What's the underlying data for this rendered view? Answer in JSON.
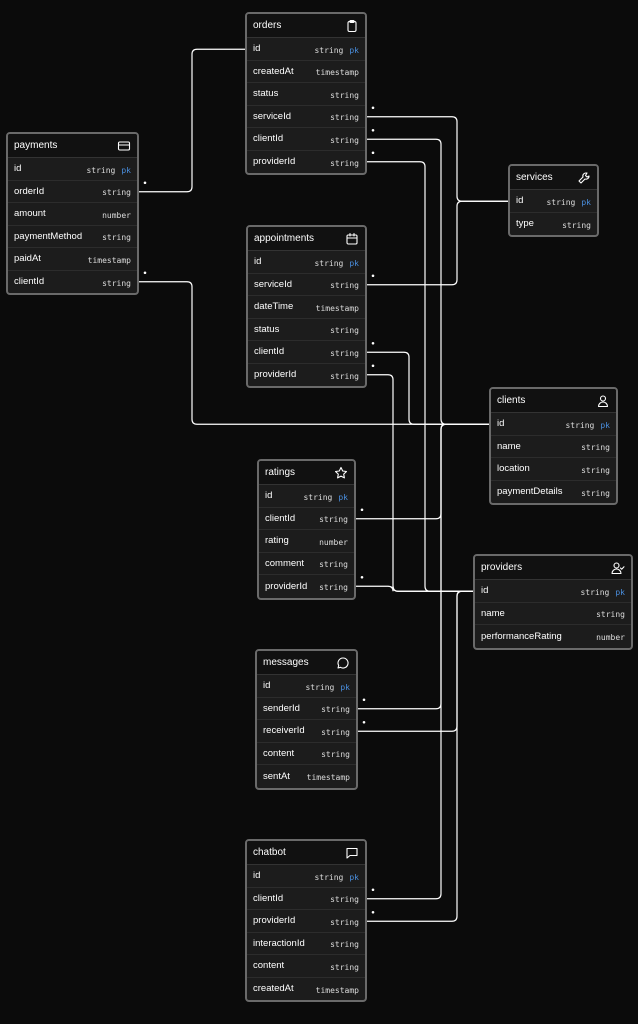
{
  "tables": [
    {
      "id": "orders",
      "name": "orders",
      "icon": "clipboard-icon",
      "fields": [
        {
          "name": "id",
          "type": "string",
          "pk": "pk"
        },
        {
          "name": "createdAt",
          "type": "timestamp"
        },
        {
          "name": "status",
          "type": "string"
        },
        {
          "name": "serviceId",
          "type": "string"
        },
        {
          "name": "clientId",
          "type": "string"
        },
        {
          "name": "providerId",
          "type": "string"
        }
      ]
    },
    {
      "id": "payments",
      "name": "payments",
      "icon": "credit-card-icon",
      "fields": [
        {
          "name": "id",
          "type": "string",
          "pk": "pk"
        },
        {
          "name": "orderId",
          "type": "string"
        },
        {
          "name": "amount",
          "type": "number"
        },
        {
          "name": "paymentMethod",
          "type": "string"
        },
        {
          "name": "paidAt",
          "type": "timestamp"
        },
        {
          "name": "clientId",
          "type": "string"
        }
      ]
    },
    {
      "id": "services",
      "name": "services",
      "icon": "wrench-icon",
      "fields": [
        {
          "name": "id",
          "type": "string",
          "pk": "pk"
        },
        {
          "name": "type",
          "type": "string"
        }
      ]
    },
    {
      "id": "appointments",
      "name": "appointments",
      "icon": "calendar-icon",
      "fields": [
        {
          "name": "id",
          "type": "string",
          "pk": "pk"
        },
        {
          "name": "serviceId",
          "type": "string"
        },
        {
          "name": "dateTime",
          "type": "timestamp"
        },
        {
          "name": "status",
          "type": "string"
        },
        {
          "name": "clientId",
          "type": "string"
        },
        {
          "name": "providerId",
          "type": "string"
        }
      ]
    },
    {
      "id": "clients",
      "name": "clients",
      "icon": "user-icon",
      "fields": [
        {
          "name": "id",
          "type": "string",
          "pk": "pk"
        },
        {
          "name": "name",
          "type": "string"
        },
        {
          "name": "location",
          "type": "string"
        },
        {
          "name": "paymentDetails",
          "type": "string"
        }
      ]
    },
    {
      "id": "ratings",
      "name": "ratings",
      "icon": "star-icon",
      "fields": [
        {
          "name": "id",
          "type": "string",
          "pk": "pk"
        },
        {
          "name": "clientId",
          "type": "string"
        },
        {
          "name": "rating",
          "type": "number"
        },
        {
          "name": "comment",
          "type": "string"
        },
        {
          "name": "providerId",
          "type": "string"
        }
      ]
    },
    {
      "id": "providers",
      "name": "providers",
      "icon": "user-check-icon",
      "fields": [
        {
          "name": "id",
          "type": "string",
          "pk": "pk"
        },
        {
          "name": "name",
          "type": "string"
        },
        {
          "name": "performanceRating",
          "type": "number"
        }
      ]
    },
    {
      "id": "messages",
      "name": "messages",
      "icon": "message-circle-icon",
      "fields": [
        {
          "name": "id",
          "type": "string",
          "pk": "pk"
        },
        {
          "name": "senderId",
          "type": "string"
        },
        {
          "name": "receiverId",
          "type": "string"
        },
        {
          "name": "content",
          "type": "string"
        },
        {
          "name": "sentAt",
          "type": "timestamp"
        }
      ]
    },
    {
      "id": "chatbot",
      "name": "chatbot",
      "icon": "message-square-icon",
      "fields": [
        {
          "name": "id",
          "type": "string",
          "pk": "pk"
        },
        {
          "name": "clientId",
          "type": "string"
        },
        {
          "name": "providerId",
          "type": "string"
        },
        {
          "name": "interactionId",
          "type": "string"
        },
        {
          "name": "content",
          "type": "string"
        },
        {
          "name": "createdAt",
          "type": "timestamp"
        }
      ]
    }
  ],
  "relations": [
    {
      "from": "payments.orderId",
      "to": "orders.id"
    },
    {
      "from": "orders.serviceId",
      "to": "services.id"
    },
    {
      "from": "orders.clientId",
      "to": "clients.id"
    },
    {
      "from": "orders.providerId",
      "to": "providers.id"
    },
    {
      "from": "appointments.serviceId",
      "to": "services.id"
    },
    {
      "from": "appointments.clientId",
      "to": "clients.id"
    },
    {
      "from": "appointments.providerId",
      "to": "providers.id"
    },
    {
      "from": "payments.clientId",
      "to": "clients.id"
    },
    {
      "from": "ratings.clientId",
      "to": "clients.id"
    },
    {
      "from": "ratings.providerId",
      "to": "providers.id"
    },
    {
      "from": "messages.senderId",
      "to": "clients.id"
    },
    {
      "from": "messages.receiverId",
      "to": "providers.id"
    },
    {
      "from": "chatbot.clientId",
      "to": "clients.id"
    },
    {
      "from": "chatbot.providerId",
      "to": "providers.id"
    }
  ],
  "colors": {
    "background": "#0b0b0b",
    "pk": "#4a8fe0",
    "edge": "#ffffff",
    "border": "#6a6a6a"
  }
}
